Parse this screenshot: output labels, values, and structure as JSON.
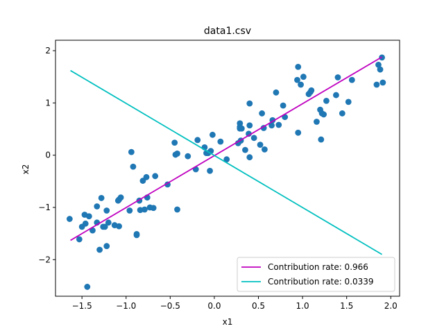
{
  "chart_data": {
    "type": "scatter",
    "title": "data1.csv",
    "xlabel": "x1",
    "ylabel": "x2",
    "xlim": [
      -1.8,
      2.1
    ],
    "ylim": [
      -2.7,
      2.2
    ],
    "xticks": [
      -1.5,
      -1.0,
      -0.5,
      0.0,
      0.5,
      1.0,
      1.5,
      2.0
    ],
    "xtick_labels": [
      "−1.5",
      "−1.0",
      "−0.5",
      "0.0",
      "0.5",
      "1.0",
      "1.5",
      "2.0"
    ],
    "yticks": [
      -2,
      -1,
      0,
      1,
      2
    ],
    "ytick_labels": [
      "−2",
      "−1",
      "0",
      "1",
      "2"
    ],
    "grid": false,
    "legend_position": "lower-right",
    "points": {
      "color": "#1f77b4",
      "x": [
        -1.64,
        -1.53,
        -1.5,
        -1.47,
        -1.46,
        -1.44,
        -1.42,
        -1.38,
        -1.33,
        -1.33,
        -1.3,
        -1.28,
        -1.26,
        -1.24,
        -1.22,
        -1.22,
        -1.2,
        -1.13,
        -1.09,
        -1.08,
        -1.08,
        -1.06,
        -0.96,
        -0.94,
        -0.92,
        -0.88,
        -0.88,
        -0.85,
        -0.84,
        -0.81,
        -0.79,
        -0.77,
        -0.76,
        -0.73,
        -0.69,
        -0.67,
        -0.53,
        -0.45,
        -0.44,
        -0.42,
        -0.42,
        -0.3,
        -0.21,
        -0.19,
        -0.11,
        -0.09,
        -0.07,
        -0.05,
        -0.04,
        -0.02,
        0.07,
        0.14,
        0.27,
        0.29,
        0.29,
        0.29,
        0.3,
        0.31,
        0.35,
        0.39,
        0.4,
        0.4,
        0.4,
        0.45,
        0.52,
        0.54,
        0.56,
        0.57,
        0.65,
        0.66,
        0.7,
        0.73,
        0.78,
        0.8,
        0.94,
        0.95,
        0.95,
        0.98,
        1.01,
        1.07,
        1.09,
        1.1,
        1.16,
        1.2,
        1.21,
        1.22,
        1.24,
        1.27,
        1.38,
        1.4,
        1.45,
        1.52,
        1.56,
        1.84,
        1.86,
        1.88,
        1.9,
        1.91
      ],
      "y": [
        -1.22,
        -1.61,
        -1.37,
        -1.14,
        -1.31,
        -2.52,
        -1.17,
        -1.44,
        -0.98,
        -1.29,
        -1.81,
        -0.82,
        -1.37,
        -1.37,
        -1.06,
        -1.74,
        -1.29,
        -1.34,
        -0.87,
        -1.36,
        -0.85,
        -0.81,
        -1.06,
        0.06,
        -0.22,
        -1.53,
        -1.51,
        -0.87,
        -1.05,
        -0.49,
        -1.04,
        -0.42,
        -0.81,
        -1.0,
        -1.01,
        -0.4,
        -0.56,
        0.24,
        0.01,
        -1.04,
        0.03,
        -0.02,
        -0.27,
        0.29,
        0.15,
        0.04,
        0.04,
        -0.3,
        0.08,
        0.39,
        0.26,
        -0.08,
        0.23,
        0.51,
        0.61,
        0.54,
        0.28,
        0.51,
        0.1,
        0.41,
        0.57,
        0.99,
        -0.04,
        0.33,
        0.2,
        0.8,
        0.52,
        0.11,
        0.57,
        0.67,
        1.2,
        0.58,
        0.95,
        0.73,
        1.44,
        0.43,
        1.69,
        1.35,
        1.5,
        1.17,
        1.21,
        1.24,
        0.64,
        0.87,
        0.3,
        0.8,
        0.78,
        1.04,
        1.15,
        1.49,
        0.8,
        1.02,
        1.44,
        1.35,
        1.73,
        1.64,
        1.87,
        1.39
      ]
    },
    "series": [
      {
        "name": "Contribution rate: 0.966",
        "color": "#bf00bf",
        "x": [
          -1.63,
          1.9
        ],
        "y": [
          -1.63,
          1.88
        ]
      },
      {
        "name": "Contribution rate: 0.0339",
        "color": "#00bfbf",
        "x": [
          -1.63,
          1.9
        ],
        "y": [
          1.62,
          -1.9
        ]
      }
    ]
  }
}
